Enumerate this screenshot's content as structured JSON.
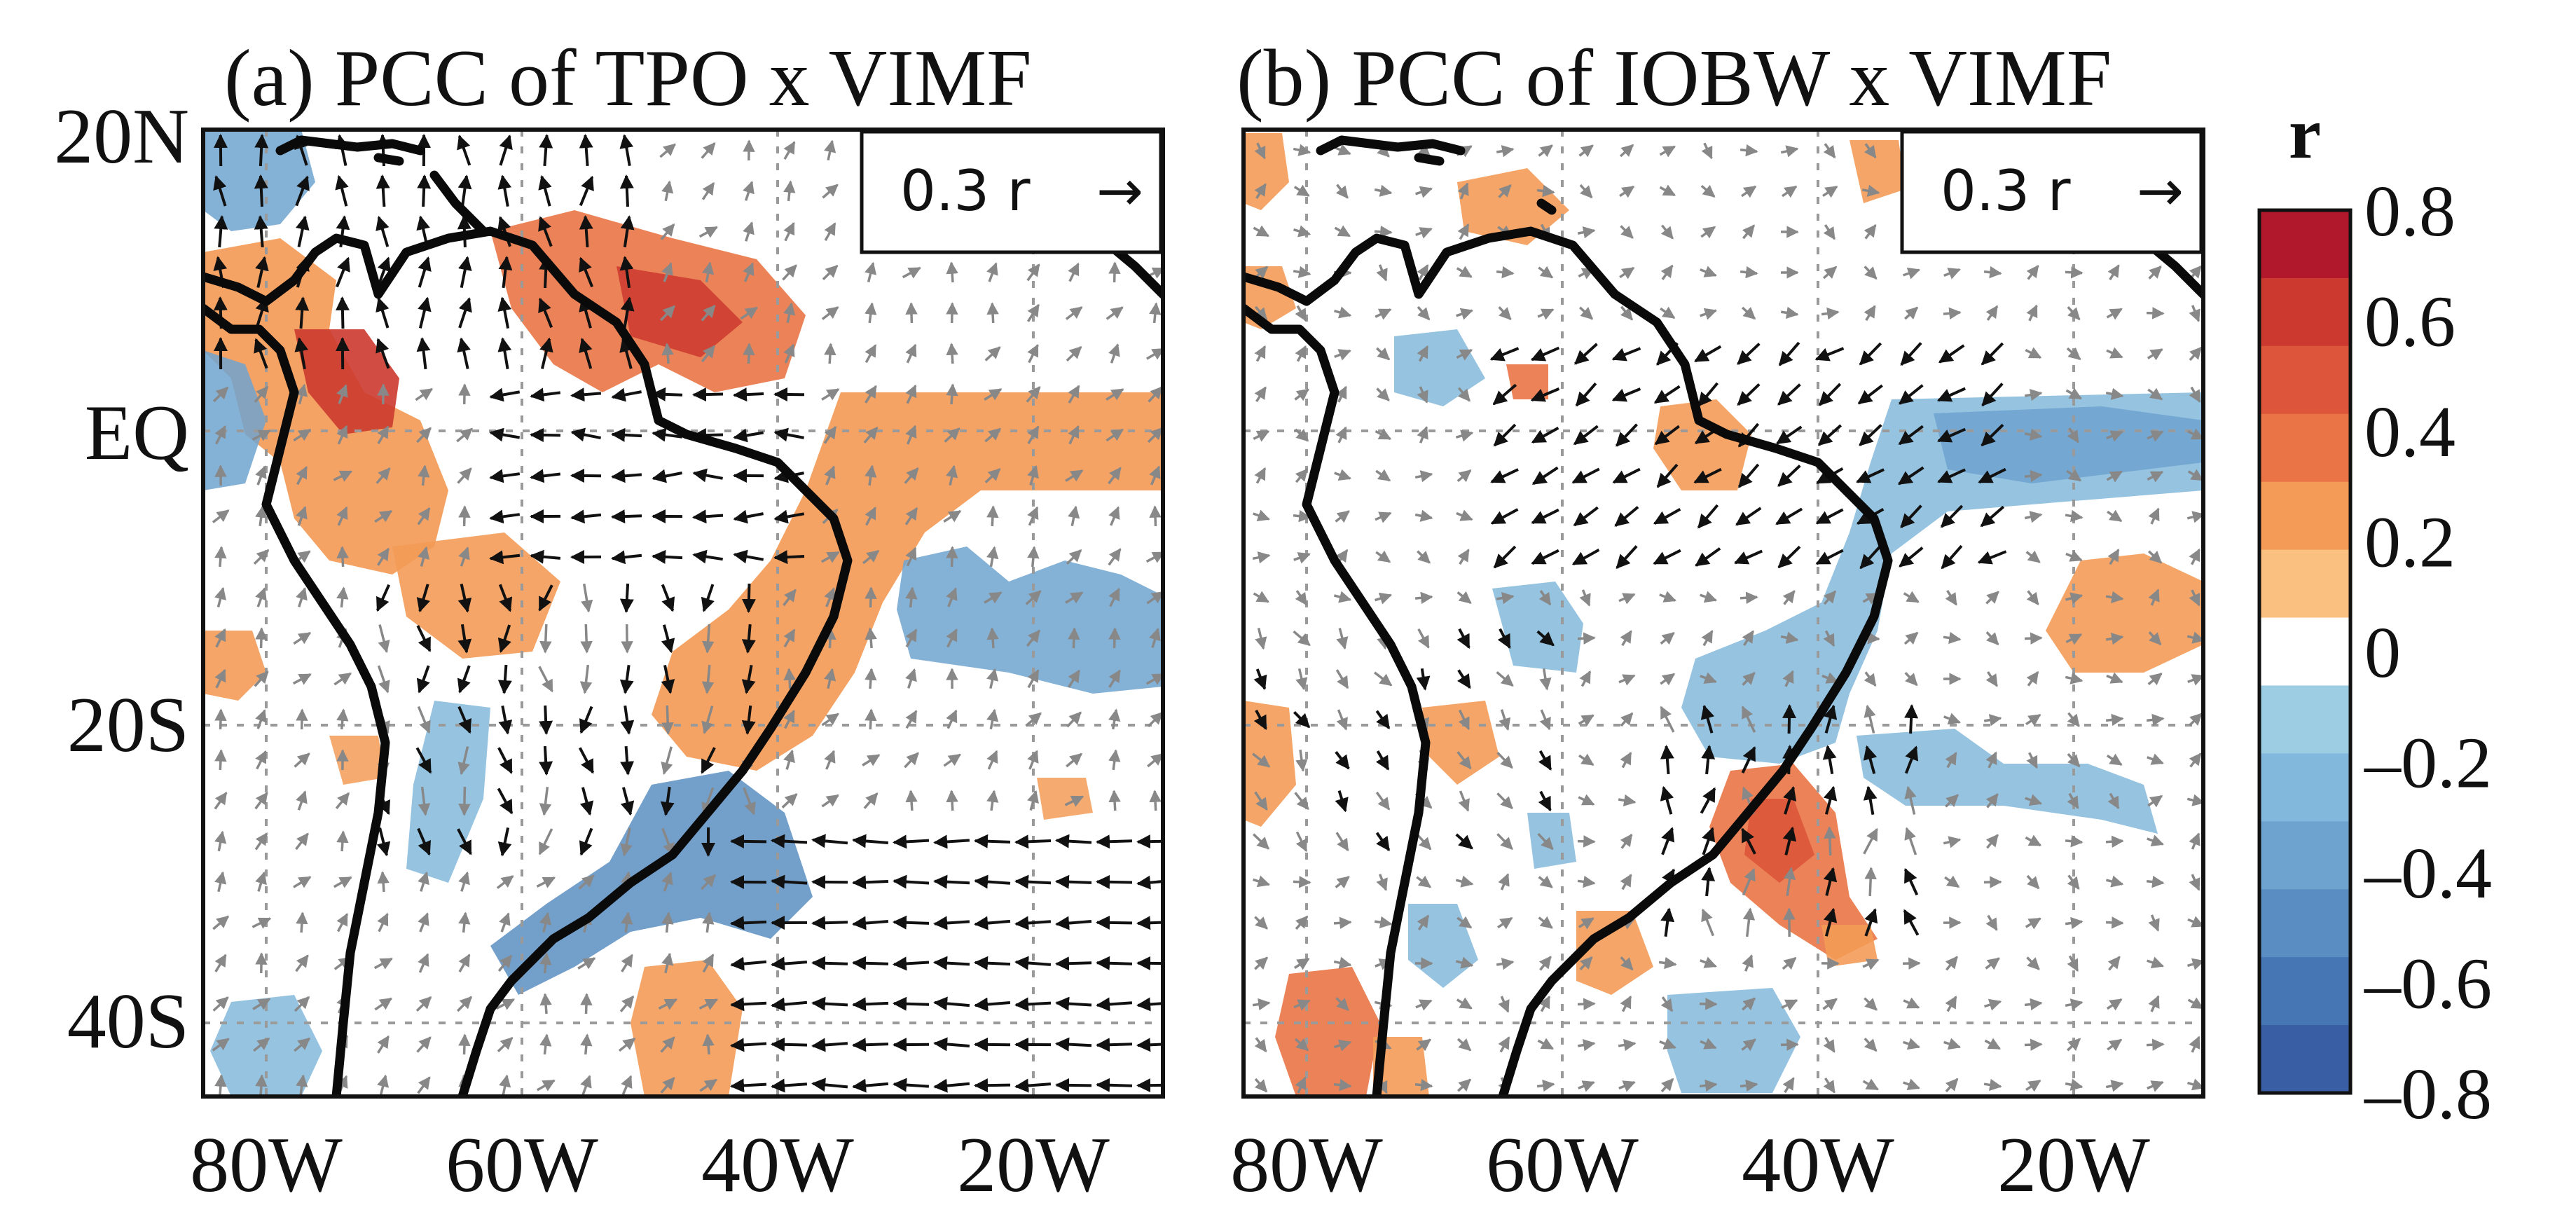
{
  "panels": [
    {
      "title": "(a) PCC of TPO x VIMF",
      "key_label": "0.3 r",
      "key_arrow": "→"
    },
    {
      "title": "(b) PCC of IOBW x VIMF",
      "key_label": "0.3 r",
      "key_arrow": "→"
    }
  ],
  "axes": {
    "y_ticks": [
      "20N",
      "EQ",
      "20S",
      "40S"
    ],
    "x_ticks": [
      "80W",
      "60W",
      "40W",
      "20W"
    ]
  },
  "colorbar": {
    "label": "r",
    "ticks": [
      "0.8",
      "0.6",
      "0.4",
      "0.2",
      "0",
      "–0.2",
      "–0.4",
      "–0.6",
      "–0.8"
    ],
    "colors": [
      "#b2182b",
      "#cc3a2f",
      "#dd553a",
      "#ea7445",
      "#f39b57",
      "#fac07f",
      "#ffffff",
      "#9dcde3",
      "#82b8db",
      "#6ea3cf",
      "#5a8ec2",
      "#4676b3",
      "#3a5ea4"
    ]
  }
}
